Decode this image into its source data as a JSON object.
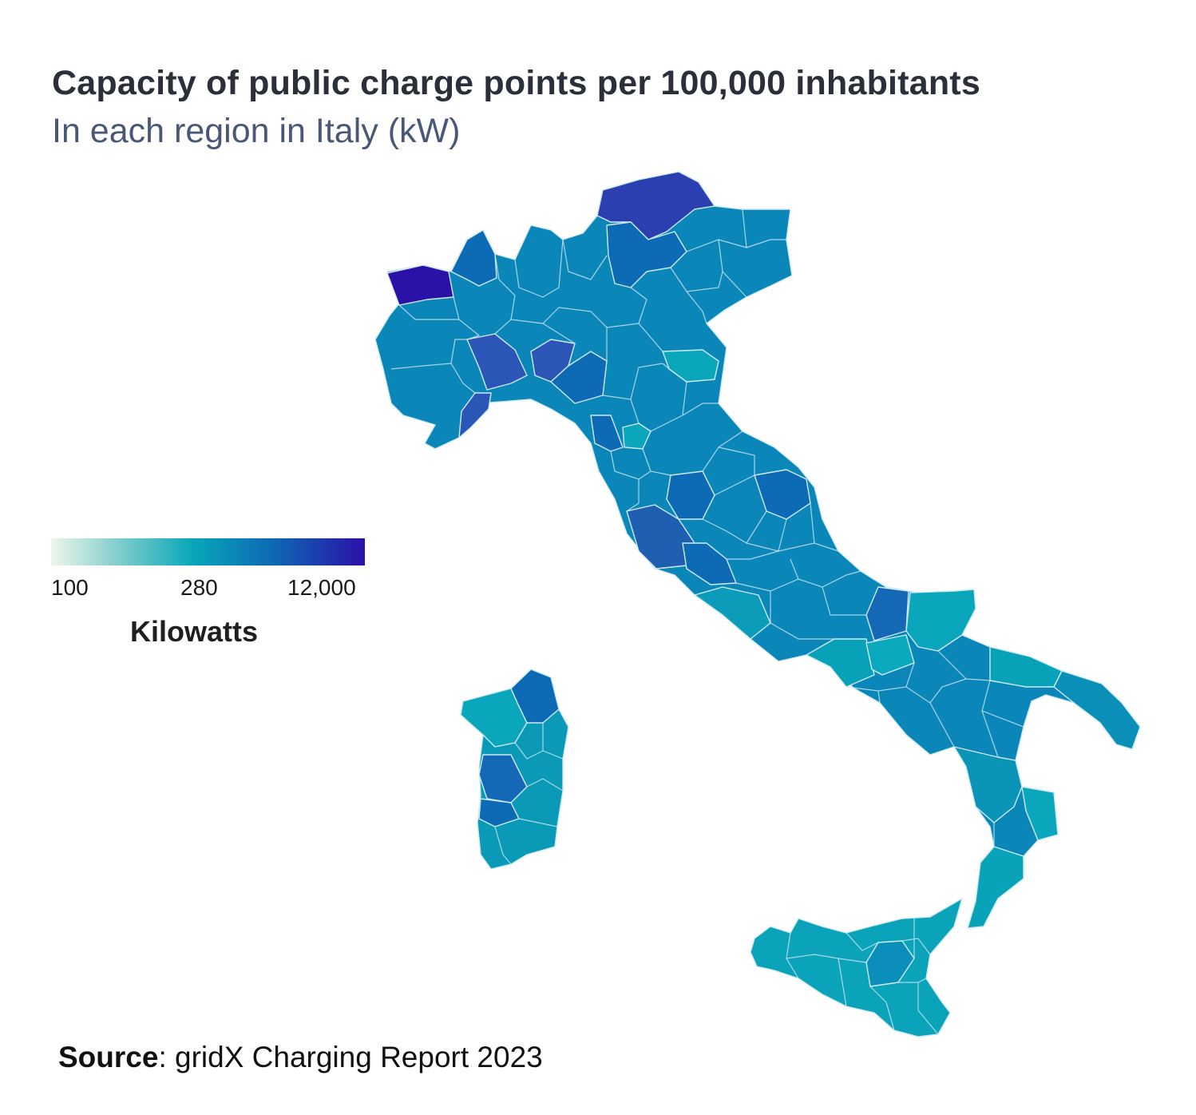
{
  "title": "Capacity of public charge points per 100,000 inhabitants",
  "subtitle": "In each region in Italy (kW)",
  "legend": {
    "title": "Kilowatts",
    "min_label": "100",
    "mid_label": "280",
    "max_label": "12,000",
    "scale_colors": [
      "#eef6ec",
      "#7fcccc",
      "#08a8b8",
      "#0d6ab4",
      "#2a11a8"
    ]
  },
  "source": {
    "label": "Source",
    "text": ": gridX Charging Report 2023"
  },
  "colors": {
    "darkest": "#2a11a8",
    "dark_blue": "#2c3fb0",
    "blue": "#0d6ab4",
    "mid": "#0b86b8",
    "teal": "#08a2b8",
    "light_teal": "#0aa6bb"
  }
}
